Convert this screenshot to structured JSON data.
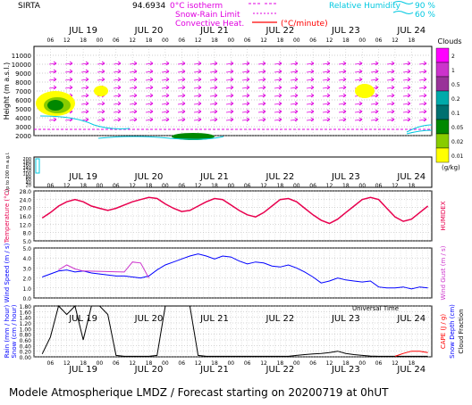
{
  "header": {
    "station": "SIRTA",
    "value_partial": "94.6934",
    "legend": {
      "isotherm": "0°C isotherm",
      "snow_rain": "Snow-Rain Limit",
      "convective": "Convective Heat.",
      "convective_unit": "(°C/minute)",
      "rh_label": "Relative Humidity",
      "rh_90": "90 %",
      "rh_60": "60 %"
    }
  },
  "colors": {
    "magenta": "#e000e0",
    "cyan": "#00d8e8",
    "red": "#ff0000",
    "blue": "#0000ff",
    "temp_line": "#e8004e"
  },
  "time_axis": {
    "dates": [
      "JUL 19",
      "JUL 20",
      "JUL 21",
      "JUL 22",
      "JUL 23",
      "JUL 24"
    ],
    "hours": [
      "06",
      "12",
      "18",
      "00",
      "06",
      "12",
      "18",
      "00",
      "06",
      "12",
      "18",
      "00",
      "06",
      "12",
      "18",
      "00",
      "06",
      "12",
      "18",
      "00",
      "06",
      "12",
      "18"
    ],
    "xlabel": "Universal Time"
  },
  "cloud_panel": {
    "ylabel": "Height  (m a.s.l.)",
    "yticks": [
      "11000",
      "10000",
      "9000",
      "8000",
      "7000",
      "6000",
      "5000",
      "4000",
      "3000",
      "2000"
    ],
    "colorbar_title": "Clouds",
    "colorbar_unit": "(g/kg)",
    "colorbar_ticks": [
      "2",
      "1",
      "0.5",
      "0.2",
      "0.1",
      "0.05",
      "0.02",
      "0.01"
    ],
    "colorbar_colors": [
      "#ff00ff",
      "#cc33cc",
      "#993399",
      "#00aaaa",
      "#007070",
      "#008800",
      "#88cc00",
      "#ffff00"
    ]
  },
  "low_panel": {
    "ylabel": "Up to 200 m a.g.l.",
    "yticks": [
      "200",
      "180",
      "160",
      "140",
      "120",
      "100",
      "80",
      "60",
      "40",
      "20"
    ]
  },
  "chart_data": [
    {
      "type": "line",
      "name": "temperature",
      "ylabel": "Temperature (°C)",
      "right_label": "HUMIDEX",
      "yticks": [
        "28.0",
        "24.0",
        "20.0",
        "16.0",
        "12.0",
        "8.0",
        "5.0"
      ],
      "ylim": [
        5,
        28
      ],
      "x_hours": [
        3,
        6,
        9,
        12,
        15,
        18,
        21,
        24,
        27,
        30,
        33,
        36,
        39,
        42,
        45,
        48,
        51,
        54,
        57,
        60,
        63,
        66,
        69,
        72,
        75,
        78,
        81,
        84,
        87,
        90,
        93,
        96,
        99,
        102,
        105,
        108,
        111,
        114,
        117,
        120,
        123,
        126,
        129,
        132,
        135,
        138,
        141,
        144
      ],
      "values": [
        15.5,
        18,
        21,
        23,
        24,
        23,
        21,
        20,
        19,
        20,
        21.5,
        23,
        24,
        25,
        24.5,
        22,
        20,
        18.5,
        19,
        21,
        23,
        24.5,
        24,
        21.5,
        19,
        17,
        16,
        18,
        21,
        24,
        24.5,
        23,
        20,
        17,
        14.5,
        13,
        15,
        18,
        21,
        24,
        25,
        24,
        20,
        16,
        14,
        15,
        18,
        21
      ]
    },
    {
      "type": "line",
      "name": "wind",
      "ylabel": "Wind Speed (m / s)",
      "right_label": "Wind Gust (m / s)",
      "yticks": [
        "5.0",
        "4.0",
        "3.0",
        "2.0",
        "1.0",
        "0.0"
      ],
      "ylim": [
        0,
        5
      ],
      "series": [
        {
          "x_hours": [
            3,
            6,
            9,
            12,
            15,
            18,
            21,
            24,
            27,
            30,
            33,
            36,
            39,
            42,
            45,
            48,
            51,
            54,
            57,
            60,
            63,
            66,
            69,
            72,
            75,
            78,
            81,
            84,
            87,
            90,
            93,
            96,
            99,
            102,
            105,
            108,
            111,
            114,
            117,
            120,
            123,
            126,
            129,
            132,
            135,
            138,
            141,
            144
          ],
          "values": [
            2.1,
            2.4,
            2.7,
            2.8,
            2.6,
            2.7,
            2.5,
            2.4,
            2.3,
            2.2,
            2.2,
            2.1,
            2.0,
            2.2,
            2.8,
            3.3,
            3.6,
            3.9,
            4.2,
            4.4,
            4.2,
            3.9,
            4.2,
            4.1,
            3.7,
            3.4,
            3.6,
            3.5,
            3.2,
            3.1,
            3.3,
            3.0,
            2.6,
            2.1,
            1.5,
            1.7,
            2.0,
            1.8,
            1.7,
            1.6,
            1.7,
            1.1,
            1.0,
            1.0,
            1.1,
            0.9,
            1.1,
            1.0
          ]
        },
        {
          "x_hours": [
            9,
            12,
            15,
            18,
            33,
            36,
            39,
            42
          ],
          "values": [
            2.8,
            3.3,
            2.9,
            2.7,
            2.6,
            3.6,
            3.5,
            2.0
          ]
        }
      ]
    },
    {
      "type": "line",
      "name": "precipitation",
      "ylabel": "Rain (mm / hour)",
      "ylabel2": "Snow (cm / hour)",
      "right_label": "CAPE (J / g)",
      "right_label2": "Snow Depth (cm)",
      "right_label3": "Cloud Fraction",
      "yticks": [
        "1.80",
        "1.60",
        "1.40",
        "1.20",
        "1.00",
        "0.80",
        "0.60",
        "0.40",
        "0.20",
        "0.00"
      ],
      "ylim": [
        0,
        1.8
      ],
      "series": [
        {
          "x_hours": [
            3,
            6,
            9,
            12,
            15,
            18,
            21,
            24,
            27,
            30,
            33,
            36,
            39,
            42,
            45,
            48,
            51,
            54,
            57,
            60,
            63,
            66,
            69,
            72,
            75,
            78,
            81,
            84,
            87,
            90,
            93,
            96,
            99,
            102,
            105,
            108,
            111,
            114,
            117,
            120,
            123,
            126,
            129,
            132,
            135,
            138,
            141,
            144
          ],
          "values": [
            0.1,
            0.7,
            1.8,
            1.5,
            1.8,
            0.6,
            1.8,
            1.8,
            1.5,
            0.05,
            0.02,
            0.02,
            0.02,
            0.02,
            0.05,
            1.8,
            1.8,
            1.8,
            1.8,
            0.05,
            0.02,
            0.02,
            0.02,
            0.02,
            0.02,
            0.02,
            0.02,
            0.02,
            0.02,
            0.02,
            0.02,
            0.05,
            0.08,
            0.1,
            0.12,
            0.15,
            0.2,
            0.12,
            0.08,
            0.05,
            0.03,
            0.02,
            0.02,
            0.02,
            0.02,
            0.02,
            0.02,
            0.02
          ]
        },
        {
          "x_hours": [
            132,
            135,
            138,
            141,
            144
          ],
          "values": [
            0.02,
            0.12,
            0.2,
            0.2,
            0.15
          ]
        }
      ]
    }
  ],
  "footer": "Modele Atmospherique LMDZ / Forecast starting on 20200719 at 0hUT"
}
